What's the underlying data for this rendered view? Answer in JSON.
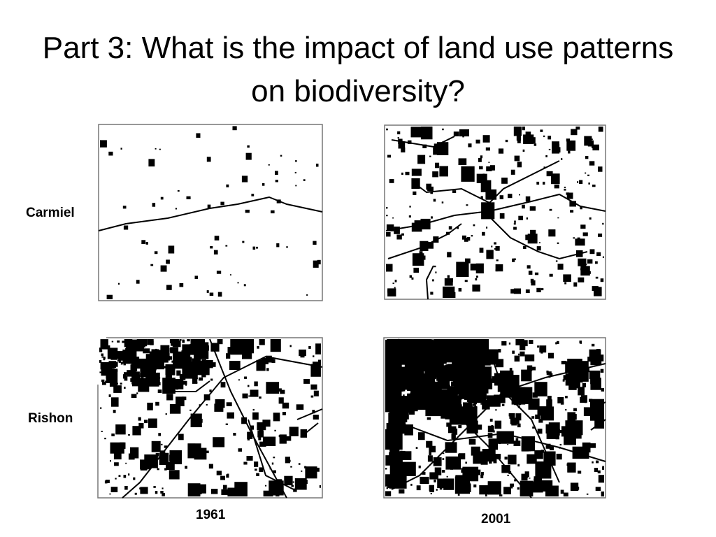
{
  "title": "Part 3: What is the impact of land use patterns on biodiversity?",
  "rows": [
    "Carmiel",
    "Rishon"
  ],
  "columns": [
    "1961",
    "2001"
  ]
}
